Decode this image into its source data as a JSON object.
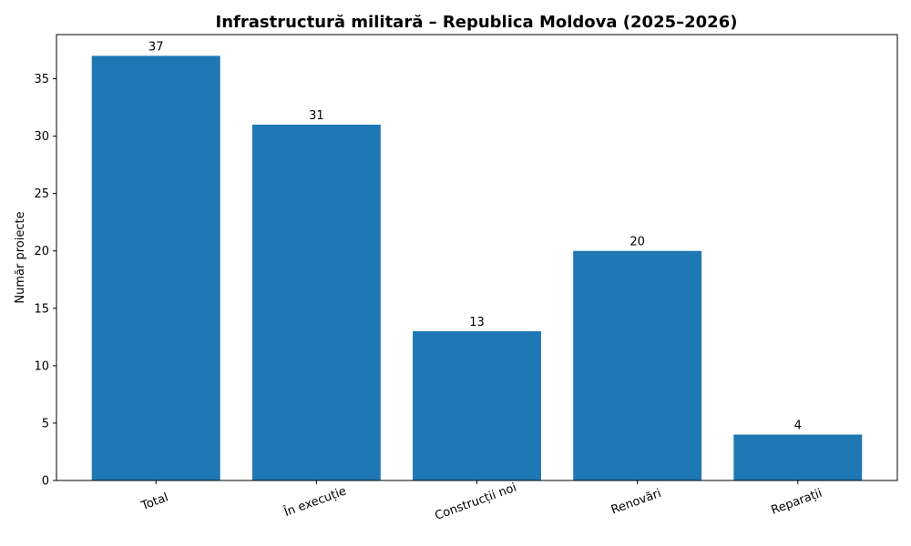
{
  "chart_data": {
    "type": "bar",
    "title": "Infrastructură militară – Republica Moldova (2025–2026)",
    "xlabel": "",
    "ylabel": "Număr proiecte",
    "categories": [
      "Total",
      "În execuție",
      "Construcții noi",
      "Renovări",
      "Reparații"
    ],
    "values": [
      37,
      31,
      13,
      20,
      4
    ],
    "ylim": [
      0,
      38.85
    ],
    "yticks": [
      0,
      5,
      10,
      15,
      20,
      25,
      30,
      35
    ],
    "grid": false,
    "bar_color": "#1f77b4"
  }
}
